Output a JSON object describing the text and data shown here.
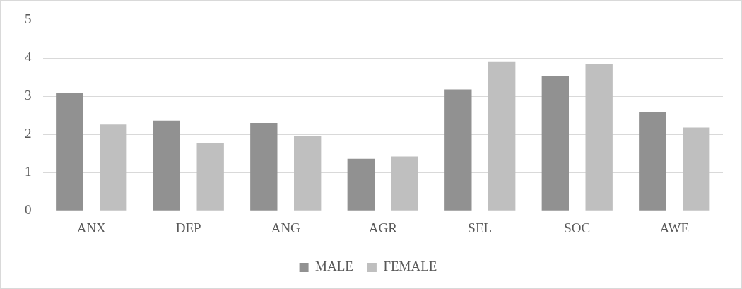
{
  "chart_data": {
    "type": "bar",
    "categories": [
      "ANX",
      "DEP",
      "ANG",
      "AGR",
      "SEL",
      "SOC",
      "AWE"
    ],
    "series": [
      {
        "name": "MALE",
        "color": "#919191",
        "values": [
          3.08,
          2.36,
          2.3,
          1.36,
          3.18,
          3.54,
          2.6
        ]
      },
      {
        "name": "FEMALE",
        "color": "#bfbfbf",
        "values": [
          2.26,
          1.78,
          1.96,
          1.42,
          3.9,
          3.86,
          2.18
        ]
      }
    ],
    "ylim": [
      0,
      5
    ],
    "yticks": [
      0,
      1,
      2,
      3,
      4,
      5
    ],
    "grid": "y",
    "legend": "bottom"
  }
}
